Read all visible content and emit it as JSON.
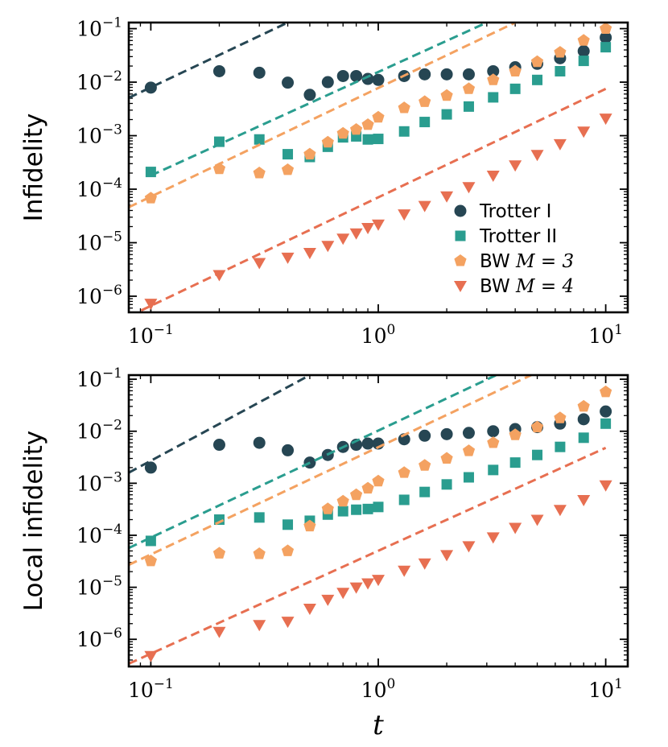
{
  "chart_data": {
    "type": "scatter",
    "xscale": "log",
    "yscale": "log",
    "xlim": [
      0.08,
      12.5
    ],
    "shared_xlabel": "t",
    "xticks": [
      {
        "base": "10",
        "exp": "−1",
        "value": 0.1
      },
      {
        "base": "10",
        "exp": "0",
        "value": 1
      },
      {
        "base": "10",
        "exp": "1",
        "value": 10
      }
    ],
    "legend": {
      "placement": "lower-right of top panel",
      "entries": [
        {
          "text": "Trotter I",
          "math": ""
        },
        {
          "text": "Trotter II",
          "math": ""
        },
        {
          "text": "BW ",
          "math": "M = 3"
        },
        {
          "text": "BW ",
          "math": "M = 4"
        }
      ]
    },
    "series_style": [
      {
        "name": "Trotter I",
        "color": "#264653",
        "marker": "circle"
      },
      {
        "name": "Trotter II",
        "color": "#2A9D8F",
        "marker": "square"
      },
      {
        "name": "BW M = 3",
        "color": "#F4A261",
        "marker": "pentagon"
      },
      {
        "name": "BW M = 4",
        "color": "#E76F51",
        "marker": "triangle-down"
      }
    ],
    "panels": [
      {
        "ylabel": "Infidelity",
        "ylim": [
          5e-07,
          0.13
        ],
        "yticks": [
          {
            "base": "10",
            "exp": "−1",
            "value": 0.1
          },
          {
            "base": "10",
            "exp": "−2",
            "value": 0.01
          },
          {
            "base": "10",
            "exp": "−3",
            "value": 0.001
          },
          {
            "base": "10",
            "exp": "−4",
            "value": 0.0001
          },
          {
            "base": "10",
            "exp": "−5",
            "value": 1e-05
          },
          {
            "base": "10",
            "exp": "−6",
            "value": 1e-06
          }
        ],
        "series": [
          {
            "name": "Trotter I",
            "points": [
              [
                0.1,
                0.0079
              ],
              [
                0.2,
                0.016
              ],
              [
                0.3,
                0.015
              ],
              [
                0.4,
                0.0098
              ],
              [
                0.5,
                0.0058
              ],
              [
                0.6,
                0.01
              ],
              [
                0.7,
                0.013
              ],
              [
                0.8,
                0.013
              ],
              [
                0.9,
                0.0115
              ],
              [
                1.0,
                0.011
              ],
              [
                1.3,
                0.013
              ],
              [
                1.6,
                0.014
              ],
              [
                2.0,
                0.014
              ],
              [
                2.5,
                0.014
              ],
              [
                3.2,
                0.016
              ],
              [
                4.0,
                0.019
              ],
              [
                5.0,
                0.022
              ],
              [
                6.3,
                0.028
              ],
              [
                8.0,
                0.038
              ],
              [
                10.0,
                0.068
              ]
            ],
            "trend": {
              "x": [
                0.08,
                0.4
              ],
              "y": [
                0.0051,
                0.13
              ]
            }
          },
          {
            "name": "Trotter II",
            "points": [
              [
                0.1,
                0.00021
              ],
              [
                0.2,
                0.00077
              ],
              [
                0.3,
                0.00085
              ],
              [
                0.4,
                0.00045
              ],
              [
                0.5,
                0.0004
              ],
              [
                0.6,
                0.00062
              ],
              [
                0.7,
                0.00093
              ],
              [
                0.8,
                0.00097
              ],
              [
                0.9,
                0.00085
              ],
              [
                1.0,
                0.00087
              ],
              [
                1.3,
                0.0012
              ],
              [
                1.6,
                0.0018
              ],
              [
                2.0,
                0.0025
              ],
              [
                2.5,
                0.0035
              ],
              [
                3.2,
                0.0052
              ],
              [
                4.0,
                0.0075
              ],
              [
                5.0,
                0.011
              ],
              [
                6.3,
                0.016
              ],
              [
                8.0,
                0.025
              ],
              [
                10.0,
                0.045
              ]
            ],
            "trend": {
              "x": [
                0.1,
                3.0
              ],
              "y": [
                0.00018,
                0.13
              ]
            }
          },
          {
            "name": "BW M = 3",
            "points": [
              [
                0.1,
                6.8e-05
              ],
              [
                0.2,
                0.00024
              ],
              [
                0.3,
                0.0002
              ],
              [
                0.4,
                0.00023
              ],
              [
                0.5,
                0.00045
              ],
              [
                0.6,
                0.00075
              ],
              [
                0.7,
                0.0011
              ],
              [
                0.8,
                0.0013
              ],
              [
                0.9,
                0.0016
              ],
              [
                1.0,
                0.0022
              ],
              [
                1.3,
                0.0033
              ],
              [
                1.6,
                0.0043
              ],
              [
                2.0,
                0.0056
              ],
              [
                2.5,
                0.0075
              ],
              [
                3.2,
                0.011
              ],
              [
                4.0,
                0.016
              ],
              [
                5.0,
                0.024
              ],
              [
                6.3,
                0.036
              ],
              [
                8.0,
                0.06
              ],
              [
                10.0,
                0.1
              ]
            ],
            "trend": {
              "x": [
                0.08,
                4.0
              ],
              "y": [
                4.6e-05,
                0.13
              ]
            }
          },
          {
            "name": "BW M = 4",
            "points": [
              [
                0.1,
                7.3e-07
              ],
              [
                0.2,
                2.5e-06
              ],
              [
                0.3,
                4.2e-06
              ],
              [
                0.4,
                5.3e-06
              ],
              [
                0.5,
                6.5e-06
              ],
              [
                0.6,
                8.8e-06
              ],
              [
                0.7,
                1.2e-05
              ],
              [
                0.8,
                1.5e-05
              ],
              [
                0.9,
                1.9e-05
              ],
              [
                1.0,
                2.2e-05
              ],
              [
                1.3,
                3.4e-05
              ],
              [
                1.6,
                4.9e-05
              ],
              [
                2.0,
                7.4e-05
              ],
              [
                2.5,
                0.00011
              ],
              [
                3.2,
                0.00018
              ],
              [
                4.0,
                0.00028
              ],
              [
                5.0,
                0.00044
              ],
              [
                6.3,
                0.0007
              ],
              [
                8.0,
                0.0012
              ],
              [
                10.0,
                0.0021
              ]
            ],
            "trend": {
              "x": [
                0.08,
                10.0
              ],
              "y": [
                4.2e-07,
                0.0075
              ]
            }
          }
        ]
      },
      {
        "ylabel": "Local infidelity",
        "ylim": [
          3e-07,
          0.12
        ],
        "yticks": [
          {
            "base": "10",
            "exp": "−1",
            "value": 0.1
          },
          {
            "base": "10",
            "exp": "−2",
            "value": 0.01
          },
          {
            "base": "10",
            "exp": "−3",
            "value": 0.001
          },
          {
            "base": "10",
            "exp": "−4",
            "value": 0.0001
          },
          {
            "base": "10",
            "exp": "−5",
            "value": 1e-05
          },
          {
            "base": "10",
            "exp": "−6",
            "value": 1e-06
          }
        ],
        "series": [
          {
            "name": "Trotter I",
            "points": [
              [
                0.1,
                0.002
              ],
              [
                0.2,
                0.0055
              ],
              [
                0.3,
                0.006
              ],
              [
                0.4,
                0.0043
              ],
              [
                0.5,
                0.0025
              ],
              [
                0.6,
                0.0035
              ],
              [
                0.7,
                0.005
              ],
              [
                0.8,
                0.0055
              ],
              [
                0.9,
                0.0058
              ],
              [
                1.0,
                0.0058
              ],
              [
                1.3,
                0.007
              ],
              [
                1.6,
                0.0082
              ],
              [
                2.0,
                0.0088
              ],
              [
                2.5,
                0.0093
              ],
              [
                3.2,
                0.01
              ],
              [
                4.0,
                0.011
              ],
              [
                5.0,
                0.012
              ],
              [
                6.3,
                0.014
              ],
              [
                8.0,
                0.017
              ],
              [
                10.0,
                0.024
              ]
            ],
            "trend": {
              "x": [
                0.08,
                0.5
              ],
              "y": [
                0.0016,
                0.12
              ]
            }
          },
          {
            "name": "Trotter II",
            "points": [
              [
                0.1,
                7.8e-05
              ],
              [
                0.2,
                0.0002
              ],
              [
                0.3,
                0.00022
              ],
              [
                0.4,
                0.00016
              ],
              [
                0.5,
                0.00019
              ],
              [
                0.6,
                0.00025
              ],
              [
                0.7,
                0.00029
              ],
              [
                0.8,
                0.00031
              ],
              [
                0.9,
                0.00032
              ],
              [
                1.0,
                0.00035
              ],
              [
                1.3,
                0.00048
              ],
              [
                1.6,
                0.00068
              ],
              [
                2.0,
                0.00095
              ],
              [
                2.5,
                0.0013
              ],
              [
                3.2,
                0.0018
              ],
              [
                4.0,
                0.0025
              ],
              [
                5.0,
                0.0035
              ],
              [
                6.3,
                0.005
              ],
              [
                8.0,
                0.0075
              ],
              [
                10.0,
                0.014
              ]
            ],
            "trend": {
              "x": [
                0.08,
                3.3
              ],
              "y": [
                5.7e-05,
                0.12
              ]
            }
          },
          {
            "name": "BW M = 3",
            "points": [
              [
                0.1,
                3.2e-05
              ],
              [
                0.2,
                4.5e-05
              ],
              [
                0.3,
                4.4e-05
              ],
              [
                0.4,
                5e-05
              ],
              [
                0.5,
                0.00015
              ],
              [
                0.6,
                0.00032
              ],
              [
                0.7,
                0.00045
              ],
              [
                0.8,
                0.0006
              ],
              [
                0.9,
                0.0008
              ],
              [
                1.0,
                0.0011
              ],
              [
                1.3,
                0.0016
              ],
              [
                1.6,
                0.0022
              ],
              [
                2.0,
                0.003
              ],
              [
                2.5,
                0.0042
              ],
              [
                3.2,
                0.006
              ],
              [
                4.0,
                0.0085
              ],
              [
                5.0,
                0.012
              ],
              [
                6.3,
                0.018
              ],
              [
                8.0,
                0.03
              ],
              [
                10.0,
                0.057
              ]
            ],
            "trend": {
              "x": [
                0.08,
                4.7
              ],
              "y": [
                2.7e-05,
                0.12
              ]
            }
          },
          {
            "name": "BW M = 4",
            "points": [
              [
                0.1,
                4.8e-07
              ],
              [
                0.2,
                1.4e-06
              ],
              [
                0.3,
                1.9e-06
              ],
              [
                0.4,
                2.2e-06
              ],
              [
                0.5,
                3.9e-06
              ],
              [
                0.6,
                5.8e-06
              ],
              [
                0.7,
                7.9e-06
              ],
              [
                0.8,
                1e-05
              ],
              [
                0.9,
                1.2e-05
              ],
              [
                1.0,
                1.4e-05
              ],
              [
                1.3,
                2.1e-05
              ],
              [
                1.6,
                2.9e-05
              ],
              [
                2.0,
                4.2e-05
              ],
              [
                2.5,
                6.2e-05
              ],
              [
                3.2,
                9.2e-05
              ],
              [
                4.0,
                0.00014
              ],
              [
                5.0,
                0.0002
              ],
              [
                6.3,
                0.00031
              ],
              [
                8.0,
                0.00048
              ],
              [
                10.0,
                0.00092
              ]
            ],
            "trend": {
              "x": [
                0.08,
                10.0
              ],
              "y": [
                3.4e-07,
                0.0048
              ]
            }
          }
        ]
      }
    ]
  }
}
